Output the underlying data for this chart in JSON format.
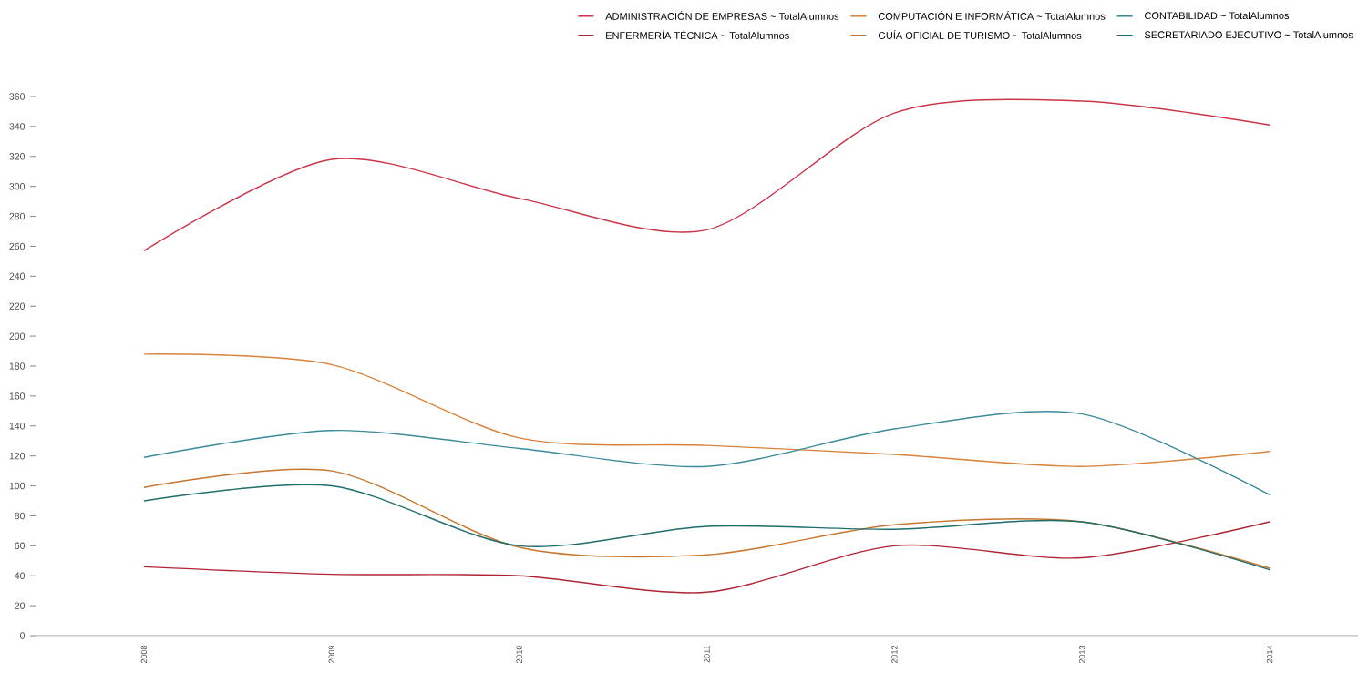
{
  "chart_data": {
    "type": "line",
    "categories": [
      "2008",
      "2009",
      "2010",
      "2011",
      "2012",
      "2013",
      "2014"
    ],
    "series": [
      {
        "name": "ADMINISTRACIÓN DE EMPRESAS ~ TotalAlumnos",
        "color": "#cc3447",
        "values": [
          257,
          318,
          292,
          271,
          349,
          357,
          341
        ]
      },
      {
        "name": "COMPUTACIÓN E INFORMÁTICA ~ TotalAlumnos",
        "color": "#d8843c",
        "values": [
          188,
          181,
          132,
          127,
          121,
          113,
          123
        ]
      },
      {
        "name": "CONTABILIDAD ~ TotalAlumnos",
        "color": "#3b8a9a",
        "values": [
          119,
          137,
          125,
          113,
          138,
          148,
          94
        ]
      },
      {
        "name": "ENFERMERÍA TÉCNICA ~ TotalAlumnos",
        "color": "#b02535",
        "values": [
          46,
          41,
          40,
          29,
          60,
          52,
          76
        ]
      },
      {
        "name": "GUÍA OFICIAL DE TURISMO ~ TotalAlumnos",
        "color": "#c7772d",
        "values": [
          99,
          110,
          59,
          54,
          74,
          76,
          45
        ]
      },
      {
        "name": "SECRETARIADO EJECUTIVO ~ TotalAlumnos",
        "color": "#1f6e6c",
        "values": [
          90,
          100,
          60,
          73,
          71,
          76,
          44
        ]
      }
    ],
    "ylim": [
      0,
      360
    ],
    "yticks": [
      0,
      20,
      40,
      60,
      80,
      100,
      120,
      140,
      160,
      180,
      200,
      220,
      240,
      260,
      280,
      300,
      320,
      340,
      360
    ],
    "legend": "top right"
  }
}
